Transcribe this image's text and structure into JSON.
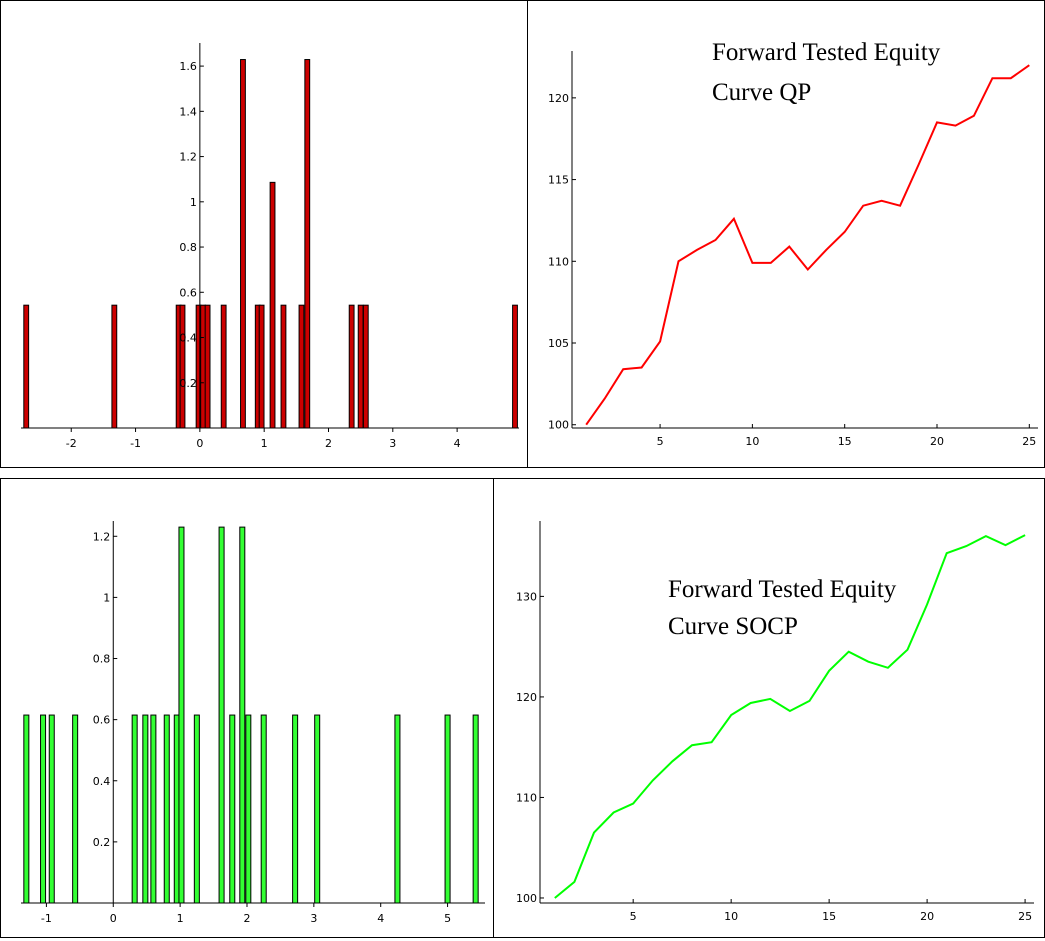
{
  "colors": {
    "qp_bars": "#cc0000",
    "qp_line": "#ff0000",
    "socp_bars": "#33ff33",
    "socp_line": "#00ff00",
    "bar_stroke": "#000000"
  },
  "panels": {
    "qp_hist": {
      "xticks": [
        "-2",
        "-1",
        "0",
        "1",
        "2",
        "3",
        "4"
      ],
      "yticks": [
        "0.2",
        "0.4",
        "0.6",
        "0.8",
        "1",
        "1.2",
        "1.4",
        "1.6"
      ]
    },
    "qp_curve": {
      "title_line1": "Forward Tested Equity",
      "title_line2": "Curve QP",
      "xticks": [
        "5",
        "10",
        "15",
        "20",
        "25"
      ],
      "yticks": [
        "100",
        "105",
        "110",
        "115",
        "120"
      ]
    },
    "socp_hist": {
      "xticks": [
        "-1",
        "0",
        "1",
        "2",
        "3",
        "4",
        "5"
      ],
      "yticks": [
        "0.2",
        "0.4",
        "0.6",
        "0.8",
        "1",
        "1.2"
      ]
    },
    "socp_curve": {
      "title_line1": "Forward Tested Equity",
      "title_line2": "Curve SOCP",
      "xticks": [
        "5",
        "10",
        "15",
        "20",
        "25"
      ],
      "yticks": [
        "100",
        "110",
        "120",
        "130"
      ]
    }
  },
  "chart_data": [
    {
      "type": "bar",
      "series_color": "#cc0000",
      "xlim": [
        -2.75,
        4.9
      ],
      "ylim": [
        0,
        1.68
      ],
      "bar_width": 0.075,
      "bars": [
        {
          "x": -2.7,
          "height": 0.543
        },
        {
          "x": -1.33,
          "height": 0.543
        },
        {
          "x": -0.33,
          "height": 0.543
        },
        {
          "x": -0.27,
          "height": 0.543
        },
        {
          "x": -0.02,
          "height": 0.543
        },
        {
          "x": 0.05,
          "height": 0.543
        },
        {
          "x": 0.12,
          "height": 0.543
        },
        {
          "x": 0.37,
          "height": 0.543
        },
        {
          "x": 0.67,
          "height": 1.629
        },
        {
          "x": 0.9,
          "height": 0.543
        },
        {
          "x": 0.96,
          "height": 0.543
        },
        {
          "x": 1.13,
          "height": 1.086
        },
        {
          "x": 1.3,
          "height": 0.543
        },
        {
          "x": 1.58,
          "height": 0.543
        },
        {
          "x": 1.67,
          "height": 1.629
        },
        {
          "x": 2.36,
          "height": 0.543
        },
        {
          "x": 2.5,
          "height": 0.543
        },
        {
          "x": 2.58,
          "height": 0.543
        },
        {
          "x": 4.9,
          "height": 0.543
        }
      ]
    },
    {
      "type": "line",
      "series_color": "#ff0000",
      "xlim": [
        0.5,
        25.2
      ],
      "ylim": [
        99.8,
        122.5
      ],
      "x": [
        1,
        2,
        3,
        4,
        5,
        6,
        7,
        8,
        9,
        10,
        11,
        12,
        13,
        14,
        15,
        16,
        17,
        18,
        19,
        20,
        21,
        22,
        23,
        24,
        25
      ],
      "y": [
        100,
        101.6,
        103.4,
        103.5,
        105.1,
        110.0,
        110.7,
        111.3,
        112.6,
        109.9,
        109.9,
        110.9,
        109.5,
        110.7,
        111.8,
        113.4,
        113.7,
        113.4,
        115.9,
        118.5,
        118.3,
        118.9,
        121.2,
        121.2,
        122.0
      ]
    },
    {
      "type": "bar",
      "series_color": "#33ff33",
      "xlim": [
        -1.35,
        5.5
      ],
      "ylim": [
        0,
        1.25
      ],
      "bar_width": 0.075,
      "bars": [
        {
          "x": -1.3,
          "height": 0.615
        },
        {
          "x": -1.05,
          "height": 0.615
        },
        {
          "x": -0.92,
          "height": 0.615
        },
        {
          "x": -0.57,
          "height": 0.615
        },
        {
          "x": 0.32,
          "height": 0.615
        },
        {
          "x": 0.48,
          "height": 0.615
        },
        {
          "x": 0.6,
          "height": 0.615
        },
        {
          "x": 0.8,
          "height": 0.615
        },
        {
          "x": 0.95,
          "height": 0.615
        },
        {
          "x": 1.02,
          "height": 1.23
        },
        {
          "x": 1.25,
          "height": 0.615
        },
        {
          "x": 1.62,
          "height": 1.23
        },
        {
          "x": 1.78,
          "height": 0.615
        },
        {
          "x": 1.93,
          "height": 1.23
        },
        {
          "x": 2.02,
          "height": 0.615
        },
        {
          "x": 2.25,
          "height": 0.615
        },
        {
          "x": 2.72,
          "height": 0.615
        },
        {
          "x": 3.05,
          "height": 0.615
        },
        {
          "x": 4.25,
          "height": 0.615
        },
        {
          "x": 5.0,
          "height": 0.615
        },
        {
          "x": 5.42,
          "height": 0.615
        }
      ]
    },
    {
      "type": "line",
      "series_color": "#00ff00",
      "xlim": [
        0.5,
        25.2
      ],
      "ylim": [
        99.5,
        137.5
      ],
      "x": [
        1,
        2,
        3,
        4,
        5,
        6,
        7,
        8,
        9,
        10,
        11,
        12,
        13,
        14,
        15,
        16,
        17,
        18,
        19,
        20,
        21,
        22,
        23,
        24,
        25
      ],
      "y": [
        100,
        101.6,
        106.5,
        108.5,
        109.4,
        111.7,
        113.6,
        115.2,
        115.5,
        118.2,
        119.4,
        119.8,
        118.6,
        119.6,
        122.6,
        124.5,
        123.5,
        122.9,
        124.7,
        129.2,
        134.3,
        135.0,
        136.0,
        135.1,
        136.1
      ]
    }
  ]
}
